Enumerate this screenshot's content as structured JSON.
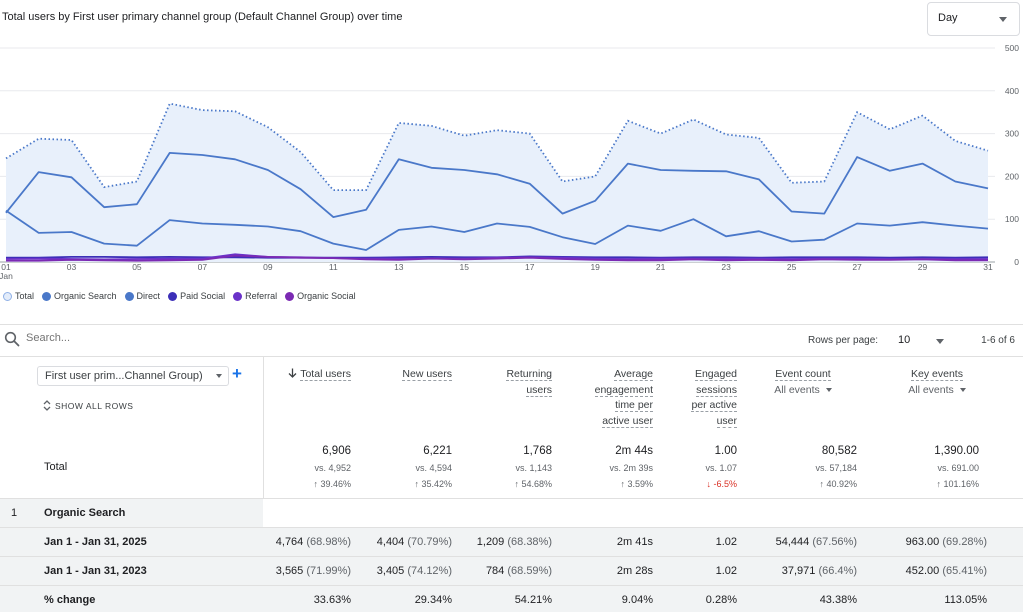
{
  "chart": {
    "title": "Total users by First user primary channel group (Default Channel Group) over time",
    "granularity": "Day"
  },
  "chart_data": {
    "type": "line",
    "x": [
      1,
      2,
      3,
      4,
      5,
      6,
      7,
      8,
      9,
      10,
      11,
      12,
      13,
      14,
      15,
      16,
      17,
      18,
      19,
      20,
      21,
      22,
      23,
      24,
      25,
      26,
      27,
      28,
      29,
      30,
      31
    ],
    "x_tick_labels": [
      "01",
      "03",
      "05",
      "07",
      "09",
      "11",
      "13",
      "15",
      "17",
      "19",
      "21",
      "23",
      "25",
      "27",
      "29",
      "31"
    ],
    "x_sub_label": "Jan",
    "ylim": [
      0,
      500
    ],
    "y_ticks": [
      "0",
      "100",
      "200",
      "300",
      "400",
      "500"
    ],
    "series": [
      {
        "name": "Organic Search",
        "values": [
          115,
          210,
          198,
          128,
          135,
          255,
          250,
          240,
          215,
          170,
          105,
          122,
          240,
          220,
          215,
          205,
          183,
          113,
          143,
          230,
          215,
          213,
          212,
          193,
          118,
          113,
          245,
          213,
          230,
          188,
          172
        ]
      },
      {
        "name": "Direct",
        "values": [
          120,
          68,
          70,
          43,
          38,
          98,
          90,
          87,
          83,
          72,
          43,
          28,
          75,
          83,
          70,
          90,
          82,
          58,
          42,
          85,
          73,
          100,
          60,
          72,
          48,
          52,
          90,
          85,
          93,
          85,
          78
        ]
      },
      {
        "name": "Paid Social",
        "values": [
          10,
          10,
          12,
          12,
          11,
          12,
          11,
          11,
          10,
          10,
          10,
          10,
          11,
          12,
          11,
          11,
          13,
          12,
          11,
          11,
          10,
          11,
          11,
          10,
          11,
          11,
          11,
          10,
          11,
          10,
          11
        ]
      },
      {
        "name": "Referral",
        "values": [
          7,
          8,
          7,
          6,
          7,
          8,
          8,
          18,
          12,
          11,
          9,
          8,
          8,
          8,
          8,
          10,
          11,
          10,
          8,
          7,
          8,
          8,
          8,
          8,
          7,
          8,
          8,
          7,
          7,
          7,
          7
        ]
      },
      {
        "name": "Organic Social",
        "values": [
          3,
          3,
          5,
          4,
          3,
          4,
          5,
          15,
          12,
          10,
          9,
          6,
          5,
          8,
          6,
          8,
          10,
          7,
          5,
          4,
          4,
          6,
          4,
          5,
          4,
          6,
          5,
          5,
          6,
          4,
          4
        ]
      }
    ],
    "total": {
      "name": "Total",
      "values": [
        242,
        288,
        285,
        175,
        188,
        370,
        355,
        352,
        315,
        257,
        168,
        168,
        325,
        318,
        295,
        308,
        300,
        188,
        200,
        330,
        300,
        333,
        298,
        290,
        185,
        188,
        350,
        310,
        342,
        283,
        260
      ]
    },
    "colors": {
      "Total": "#4a78c9",
      "Organic Search": "#4a78c9",
      "Direct": "#4a78c9",
      "Paid Social": "#3c2fb8",
      "Referral": "#6a32c9",
      "Organic Social": "#7b2ab3"
    }
  },
  "legend": [
    {
      "label": "Total",
      "color": "#a8c0ea",
      "hollow": true
    },
    {
      "label": "Organic Search",
      "color": "#4a78c9"
    },
    {
      "label": "Direct",
      "color": "#4a78c9"
    },
    {
      "label": "Paid Social",
      "color": "#3c2fb8"
    },
    {
      "label": "Referral",
      "color": "#6a32c9"
    },
    {
      "label": "Organic Social",
      "color": "#7b2ab3"
    }
  ],
  "search": {
    "placeholder": "Search..."
  },
  "pagination": {
    "rows_per_page_label": "Rows per page:",
    "rows_per_page": "10",
    "range": "1-6 of 6"
  },
  "table": {
    "dimension_select": "First user prim...Channel Group)",
    "show_all_rows": "SHOW ALL ROWS",
    "columns": {
      "total_users": "Total users",
      "new_users": "New users",
      "returning_1": "Returning",
      "returning_2": "users",
      "avg_eng_1": "Average",
      "avg_eng_2": "engagement",
      "avg_eng_3": "time per",
      "avg_eng_4": "active user",
      "eng_sess_1": "Engaged",
      "eng_sess_2": "sessions",
      "eng_sess_3": "per active",
      "eng_sess_4": "user",
      "event_count": "Event count",
      "event_count_sub": "All events",
      "key_events": "Key events",
      "key_events_sub": "All events"
    },
    "total": {
      "label": "Total",
      "total_users": {
        "value": "6,906",
        "vs": "vs. 4,952",
        "change": "↑ 39.46%"
      },
      "new_users": {
        "value": "6,221",
        "vs": "vs. 4,594",
        "change": "↑ 35.42%"
      },
      "returning_users": {
        "value": "1,768",
        "vs": "vs. 1,143",
        "change": "↑ 54.68%"
      },
      "avg_engagement": {
        "value": "2m 44s",
        "vs": "vs. 2m 39s",
        "change": "↑ 3.59%"
      },
      "engaged_sessions": {
        "value": "1.00",
        "vs": "vs. 1.07",
        "change": "↓ -6.5%"
      },
      "event_count": {
        "value": "80,582",
        "vs": "vs. 57,184",
        "change": "↑ 40.92%"
      },
      "key_events": {
        "value": "1,390.00",
        "vs": "vs. 691.00",
        "change": "↑ 101.16%"
      }
    },
    "group": {
      "index": "1",
      "label": "Organic Search"
    },
    "rows": [
      {
        "label": "Jan 1 - Jan 31, 2025",
        "total_users": "4,764",
        "total_users_pct": "(68.98%)",
        "new_users": "4,404",
        "new_users_pct": "(70.79%)",
        "returning_users": "1,209",
        "returning_users_pct": "(68.38%)",
        "avg_engagement": "2m 41s",
        "engaged_sessions": "1.02",
        "event_count": "54,444",
        "event_count_pct": "(67.56%)",
        "key_events": "963.00",
        "key_events_pct": "(69.28%)"
      },
      {
        "label": "Jan 1 - Jan 31, 2023",
        "total_users": "3,565",
        "total_users_pct": "(71.99%)",
        "new_users": "3,405",
        "new_users_pct": "(74.12%)",
        "returning_users": "784",
        "returning_users_pct": "(68.59%)",
        "avg_engagement": "2m 28s",
        "engaged_sessions": "1.02",
        "event_count": "37,971",
        "event_count_pct": "(66.4%)",
        "key_events": "452.00",
        "key_events_pct": "(65.41%)"
      }
    ],
    "pct_change": {
      "label": "% change",
      "total_users": "33.63%",
      "new_users": "29.34%",
      "returning_users": "54.21%",
      "avg_engagement": "9.04%",
      "engaged_sessions": "0.28%",
      "event_count": "43.38%",
      "key_events": "113.05%"
    }
  }
}
